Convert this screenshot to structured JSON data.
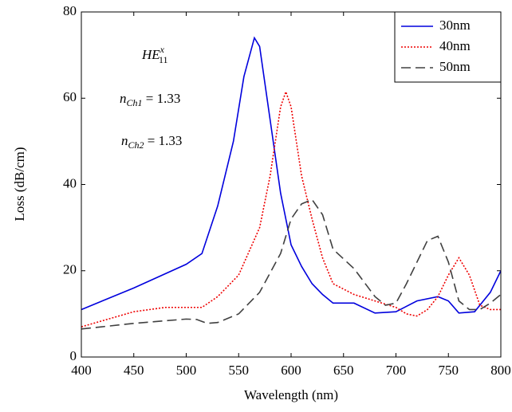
{
  "chart_data": {
    "type": "line",
    "xlabel": "Wavelength (nm)",
    "ylabel": "Loss (dB/cm)",
    "annotations": [
      {
        "base": "HE",
        "sub": "11",
        "sup": "x"
      },
      {
        "base": "n",
        "sub": "Ch1",
        "rest": " = 1.33"
      },
      {
        "base": "n",
        "sub": "Ch2",
        "rest": " = 1.33"
      }
    ],
    "series": [
      {
        "name": "30nm",
        "color": "#0000dd",
        "dash": "solid",
        "x": [
          400,
          450,
          500,
          515,
          530,
          545,
          555,
          565,
          570,
          580,
          590,
          600,
          610,
          620,
          630,
          640,
          660,
          680,
          700,
          720,
          740,
          750,
          760,
          775,
          790,
          800
        ],
        "values": [
          11,
          16,
          21.5,
          24,
          35,
          50,
          65,
          74,
          72,
          55,
          38,
          26,
          21,
          17,
          14.5,
          12.5,
          12.5,
          10.2,
          10.5,
          13,
          14,
          13,
          10.2,
          10.5,
          15,
          20
        ]
      },
      {
        "name": "40nm",
        "color": "#ee0000",
        "dash": "dotted",
        "x": [
          400,
          450,
          480,
          500,
          515,
          530,
          550,
          570,
          580,
          590,
          595,
          600,
          610,
          620,
          630,
          640,
          660,
          680,
          700,
          710,
          720,
          730,
          740,
          750,
          760,
          770,
          780,
          790,
          800
        ],
        "values": [
          7,
          10.5,
          11.5,
          11.5,
          11.5,
          14,
          19,
          30,
          42,
          58,
          61.5,
          58,
          42,
          32,
          23,
          17,
          14.5,
          13,
          11.5,
          10,
          9.5,
          11,
          14,
          19,
          23,
          19,
          12,
          11,
          11
        ]
      },
      {
        "name": "50nm",
        "color": "#404040",
        "dash": "dashed",
        "x": [
          400,
          450,
          500,
          510,
          520,
          530,
          550,
          570,
          590,
          600,
          610,
          620,
          630,
          640,
          660,
          680,
          690,
          700,
          710,
          720,
          730,
          740,
          750,
          760,
          770,
          780,
          790,
          800
        ],
        "values": [
          6.5,
          7.8,
          8.8,
          8.7,
          7.8,
          8,
          10,
          15,
          24,
          32,
          35.5,
          36.5,
          33,
          25,
          20.5,
          14,
          12,
          12.5,
          17,
          22,
          27,
          28,
          22,
          13,
          11,
          11,
          12.5,
          14.5
        ]
      }
    ],
    "xlim": [
      400,
      800
    ],
    "xticks": [
      400,
      450,
      500,
      550,
      600,
      650,
      700,
      750,
      800
    ],
    "ylim": [
      0,
      80
    ],
    "yticks": [
      0,
      20,
      40,
      60,
      80
    ],
    "legend": "upper right"
  }
}
